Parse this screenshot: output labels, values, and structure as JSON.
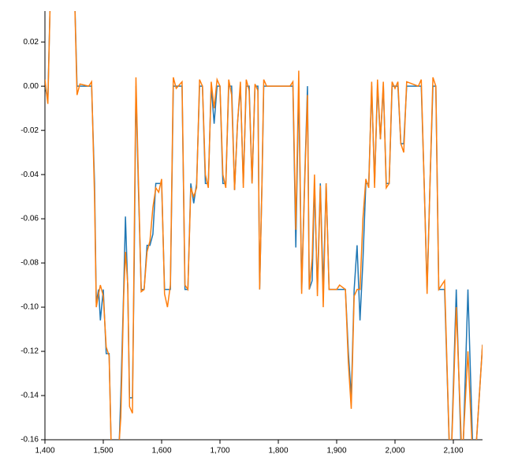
{
  "chart_data": {
    "type": "line",
    "x": [
      1400,
      1405,
      1410,
      1450,
      1455,
      1460,
      1475,
      1480,
      1485,
      1488,
      1492,
      1495,
      1500,
      1505,
      1510,
      1515,
      1525,
      1530,
      1535,
      1538,
      1542,
      1545,
      1550,
      1553,
      1556,
      1560,
      1565,
      1570,
      1575,
      1580,
      1585,
      1590,
      1595,
      1600,
      1605,
      1610,
      1615,
      1620,
      1625,
      1635,
      1640,
      1645,
      1650,
      1655,
      1660,
      1665,
      1670,
      1675,
      1680,
      1685,
      1690,
      1695,
      1700,
      1705,
      1710,
      1715,
      1720,
      1725,
      1730,
      1735,
      1740,
      1745,
      1750,
      1755,
      1760,
      1765,
      1768,
      1772,
      1775,
      1780,
      1820,
      1825,
      1830,
      1835,
      1840,
      1845,
      1850,
      1853,
      1858,
      1862,
      1867,
      1872,
      1877,
      1882,
      1887,
      1900,
      1905,
      1915,
      1920,
      1925,
      1930,
      1935,
      1940,
      1945,
      1950,
      1955,
      1960,
      1965,
      1970,
      1975,
      1980,
      1985,
      1990,
      1995,
      2000,
      2005,
      2010,
      2015,
      2020,
      2040,
      2045,
      2050,
      2055,
      2060,
      2065,
      2070,
      2075,
      2085,
      2095,
      2105,
      2115,
      2125,
      2135,
      2150
    ],
    "series": [
      {
        "color": "#1f77b4",
        "values": [
          0.0,
          -0.006,
          0.05,
          0.05,
          0.0,
          0.0,
          0.0,
          0.0,
          -0.044,
          -0.098,
          -0.092,
          -0.106,
          -0.092,
          -0.121,
          -0.121,
          -0.18,
          -0.18,
          -0.14,
          -0.092,
          -0.059,
          -0.092,
          -0.141,
          -0.141,
          -0.08,
          0.0,
          -0.044,
          -0.092,
          -0.092,
          -0.072,
          -0.072,
          -0.067,
          -0.044,
          -0.044,
          -0.044,
          -0.092,
          -0.092,
          -0.092,
          0.0,
          0.0,
          0.0,
          -0.092,
          -0.092,
          -0.044,
          -0.053,
          -0.044,
          0.0,
          0.0,
          -0.044,
          -0.044,
          0.0,
          -0.017,
          0.0,
          0.0,
          -0.044,
          -0.044,
          0.0,
          0.0,
          -0.047,
          -0.017,
          0.0,
          -0.044,
          0.0,
          0.0,
          -0.044,
          0.0,
          0.0,
          -0.092,
          -0.044,
          0.0,
          0.0,
          0.0,
          0.0,
          -0.073,
          0.0,
          -0.092,
          -0.044,
          0.0,
          -0.092,
          -0.088,
          -0.044,
          -0.092,
          -0.044,
          -0.092,
          -0.044,
          -0.092,
          -0.092,
          -0.092,
          -0.092,
          -0.12,
          -0.141,
          -0.092,
          -0.072,
          -0.106,
          -0.079,
          -0.044,
          -0.044,
          0.0,
          -0.044,
          0.0,
          -0.024,
          0.0,
          -0.044,
          -0.044,
          0.0,
          0.0,
          0.0,
          -0.026,
          -0.026,
          0.0,
          0.0,
          0.0,
          -0.044,
          -0.092,
          -0.044,
          0.0,
          0.0,
          -0.092,
          -0.092,
          -0.18,
          -0.092,
          -0.18,
          -0.092,
          -0.18,
          -0.117
        ]
      },
      {
        "color": "#ff7f0e",
        "values": [
          0.003,
          -0.008,
          0.05,
          0.05,
          -0.004,
          0.001,
          0.0,
          0.002,
          -0.05,
          -0.1,
          -0.094,
          -0.09,
          -0.095,
          -0.118,
          -0.122,
          -0.18,
          -0.17,
          -0.15,
          -0.095,
          -0.075,
          -0.09,
          -0.145,
          -0.148,
          -0.07,
          0.004,
          -0.04,
          -0.093,
          -0.092,
          -0.075,
          -0.07,
          -0.055,
          -0.046,
          -0.048,
          -0.042,
          -0.094,
          -0.1,
          -0.09,
          0.004,
          -0.001,
          0.002,
          -0.09,
          -0.092,
          -0.046,
          -0.05,
          -0.046,
          0.003,
          0.0,
          -0.04,
          -0.046,
          0.002,
          -0.01,
          0.003,
          0.0,
          -0.04,
          -0.046,
          0.003,
          -0.004,
          -0.047,
          -0.017,
          0.002,
          -0.046,
          0.003,
          -0.002,
          -0.044,
          0.001,
          -0.002,
          -0.092,
          -0.044,
          0.003,
          0.0,
          0.0,
          0.002,
          -0.065,
          0.007,
          -0.094,
          -0.046,
          -0.004,
          -0.092,
          -0.078,
          -0.04,
          -0.095,
          -0.045,
          -0.1,
          -0.044,
          -0.092,
          -0.092,
          -0.09,
          -0.092,
          -0.125,
          -0.146,
          -0.095,
          -0.092,
          -0.092,
          -0.06,
          -0.042,
          -0.046,
          0.002,
          -0.046,
          0.003,
          -0.024,
          0.002,
          -0.046,
          -0.044,
          0.002,
          -0.001,
          0.002,
          -0.026,
          -0.03,
          0.002,
          0.0,
          0.003,
          -0.044,
          -0.094,
          -0.044,
          0.004,
          0.0,
          -0.092,
          -0.088,
          -0.18,
          -0.1,
          -0.17,
          -0.12,
          -0.18,
          -0.117
        ]
      }
    ],
    "xlim": [
      1400,
      2150
    ],
    "ylim": [
      -0.16,
      0.034
    ],
    "xticks": [
      {
        "value": 1400,
        "label": "1,400"
      },
      {
        "value": 1500,
        "label": "1,500"
      },
      {
        "value": 1600,
        "label": "1,600"
      },
      {
        "value": 1700,
        "label": "1,700"
      },
      {
        "value": 1800,
        "label": "1,800"
      },
      {
        "value": 1900,
        "label": "1,900"
      },
      {
        "value": 2000,
        "label": "2,000"
      },
      {
        "value": 2100,
        "label": "2,100"
      }
    ],
    "yticks": [
      {
        "value": -0.16,
        "label": "-0.16"
      },
      {
        "value": -0.14,
        "label": "-0.14"
      },
      {
        "value": -0.12,
        "label": "-0.12"
      },
      {
        "value": -0.1,
        "label": "-0.10"
      },
      {
        "value": -0.08,
        "label": "-0.08"
      },
      {
        "value": -0.06,
        "label": "-0.06"
      },
      {
        "value": -0.04,
        "label": "-0.04"
      },
      {
        "value": -0.02,
        "label": "-0.02"
      },
      {
        "value": 0,
        "label": "0.00"
      },
      {
        "value": 0.02,
        "label": "0.02"
      }
    ]
  }
}
